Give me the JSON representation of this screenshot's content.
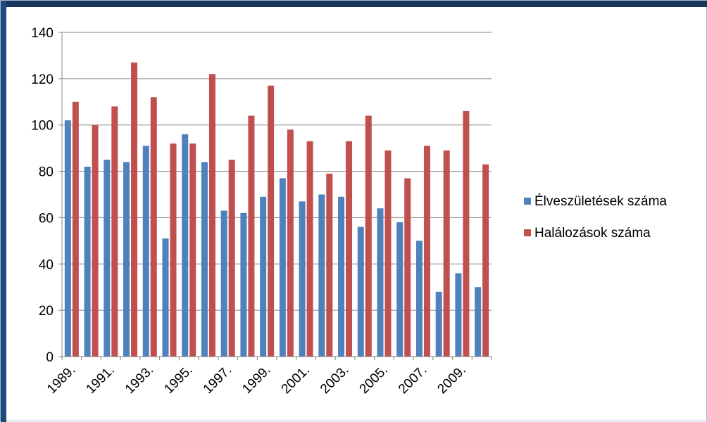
{
  "chart_data": {
    "type": "bar",
    "title": "",
    "xlabel": "",
    "ylabel": "",
    "ylim": [
      0,
      140
    ],
    "yticks": [
      0,
      20,
      40,
      60,
      80,
      100,
      120,
      140
    ],
    "grid": true,
    "legend_position": "right",
    "categories": [
      "1989.",
      "1990.",
      "1991.",
      "1992.",
      "1993.",
      "1994.",
      "1995.",
      "1996.",
      "1997.",
      "1998.",
      "1999.",
      "2000.",
      "2001.",
      "2002.",
      "2003.",
      "2004.",
      "2005.",
      "2006.",
      "2007.",
      "2008.",
      "2009.",
      "2010."
    ],
    "category_labels": [
      "1989.",
      "",
      "1991.",
      "",
      "1993.",
      "",
      "1995.",
      "",
      "1997.",
      "",
      "1999.",
      "",
      "2001.",
      "",
      "2003.",
      "",
      "2005.",
      "",
      "2007.",
      "",
      "2009.",
      ""
    ],
    "series": [
      {
        "name": "Élveszületések száma",
        "color": "#4f81bd",
        "values": [
          102,
          82,
          85,
          84,
          91,
          51,
          96,
          84,
          63,
          62,
          69,
          77,
          67,
          70,
          69,
          56,
          64,
          58,
          50,
          28,
          36,
          30
        ]
      },
      {
        "name": "Halálozások száma",
        "color": "#c0504d",
        "values": [
          110,
          100,
          108,
          127,
          112,
          92,
          92,
          122,
          85,
          104,
          117,
          98,
          93,
          79,
          93,
          104,
          89,
          77,
          91,
          89,
          106,
          83
        ]
      }
    ]
  },
  "colors": {
    "window_top_border": "#17375e",
    "window_left_border": "#1f497d",
    "gridline": "#868686",
    "axis": "#868686",
    "text": "#000000"
  }
}
